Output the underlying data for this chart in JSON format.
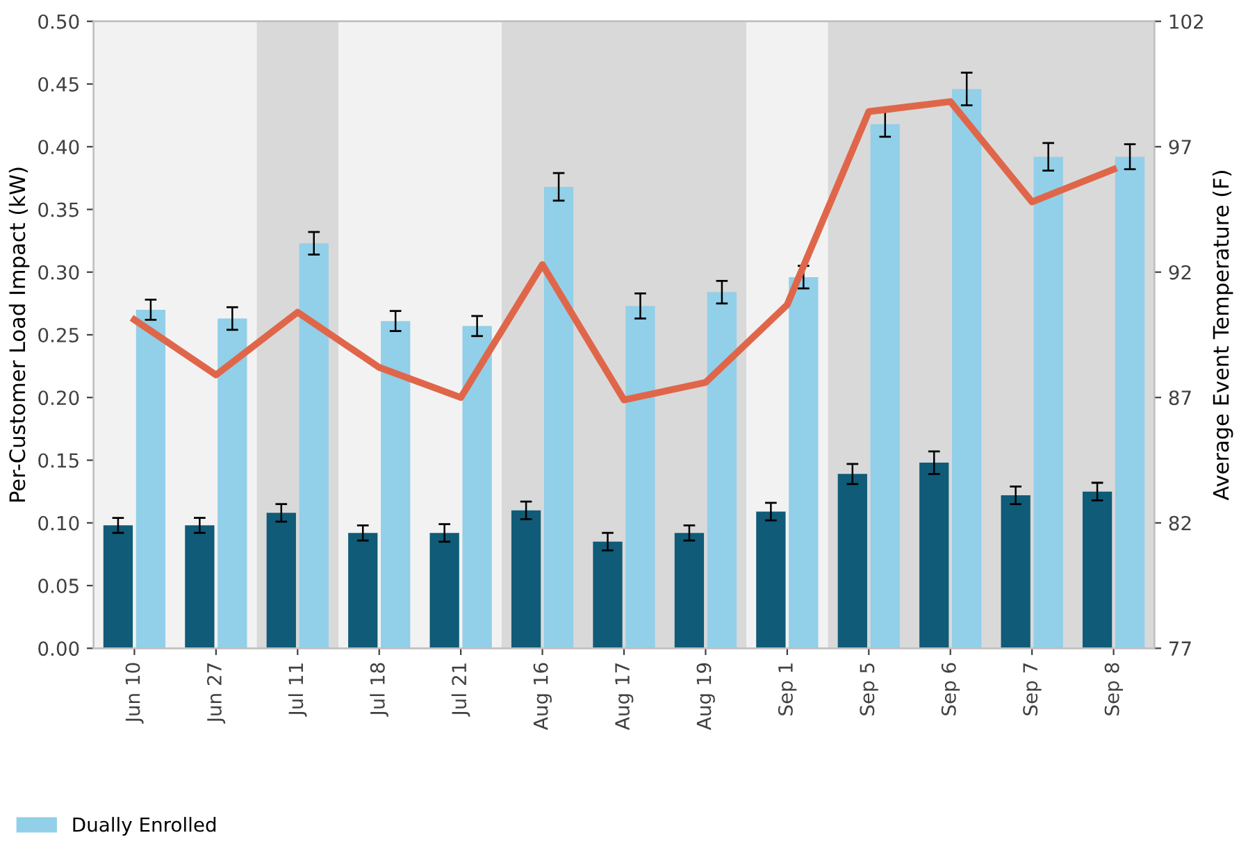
{
  "chart_data": {
    "type": "bar",
    "categories": [
      "Jun 10",
      "Jun 27",
      "Jul 11",
      "Jul 18",
      "Jul 21",
      "Aug 16",
      "Aug 17",
      "Aug 19",
      "Sep 1",
      "Sep 5",
      "Sep 6",
      "Sep 7",
      "Sep 8"
    ],
    "ylabel": "Per-Customer Load Impact (kW)",
    "y2label": "Average Event Temperature (F)",
    "ylim": [
      0,
      0.5
    ],
    "yticks": [
      {
        "value": 0,
        "label": "0.00"
      },
      {
        "value": 0.05,
        "label": "0.05"
      },
      {
        "value": 0.1,
        "label": "0.10"
      },
      {
        "value": 0.15,
        "label": "0.15"
      },
      {
        "value": 0.2,
        "label": "0.20"
      },
      {
        "value": 0.25,
        "label": "0.25"
      },
      {
        "value": 0.3,
        "label": "0.30"
      },
      {
        "value": 0.35,
        "label": "0.35"
      },
      {
        "value": 0.4,
        "label": "0.40"
      },
      {
        "value": 0.45,
        "label": "0.45"
      },
      {
        "value": 0.5,
        "label": "0.50"
      }
    ],
    "y2lim": [
      77,
      102
    ],
    "y2ticks": [
      77,
      82,
      87,
      92,
      97,
      102
    ],
    "series": [
      {
        "color": "#0f5b78",
        "values": [
          0.098,
          0.098,
          0.108,
          0.092,
          0.092,
          0.11,
          0.085,
          0.092,
          0.109,
          0.139,
          0.148,
          0.122,
          0.125
        ],
        "errors": [
          0.006,
          0.006,
          0.007,
          0.006,
          0.007,
          0.007,
          0.007,
          0.006,
          0.007,
          0.008,
          0.009,
          0.007,
          0.007
        ]
      },
      {
        "name": "Dually Enrolled",
        "color": "#92cfe8",
        "values": [
          0.27,
          0.263,
          0.323,
          0.261,
          0.257,
          0.368,
          0.273,
          0.284,
          0.296,
          0.418,
          0.446,
          0.392,
          0.392
        ],
        "errors": [
          0.008,
          0.009,
          0.009,
          0.008,
          0.008,
          0.011,
          0.01,
          0.009,
          0.009,
          0.01,
          0.013,
          0.011,
          0.01
        ]
      },
      {
        "type": "line",
        "axis": "y2",
        "color": "#e0664a",
        "values": [
          90.1,
          87.9,
          90.4,
          88.2,
          87.0,
          92.3,
          86.9,
          87.6,
          90.7,
          98.4,
          98.8,
          94.8,
          96.1
        ]
      }
    ],
    "bands": [
      {
        "axis": "x",
        "from": "Jul 11",
        "to": "Jul 11",
        "color": "#d9d9d9"
      },
      {
        "axis": "x",
        "from": "Aug 16",
        "to": "Aug 19",
        "color": "#d9d9d9"
      },
      {
        "axis": "x",
        "from": "Sep 5",
        "to": "Sep 8",
        "color": "#d9d9d9"
      }
    ],
    "legend": "bottom left",
    "grid": false
  }
}
